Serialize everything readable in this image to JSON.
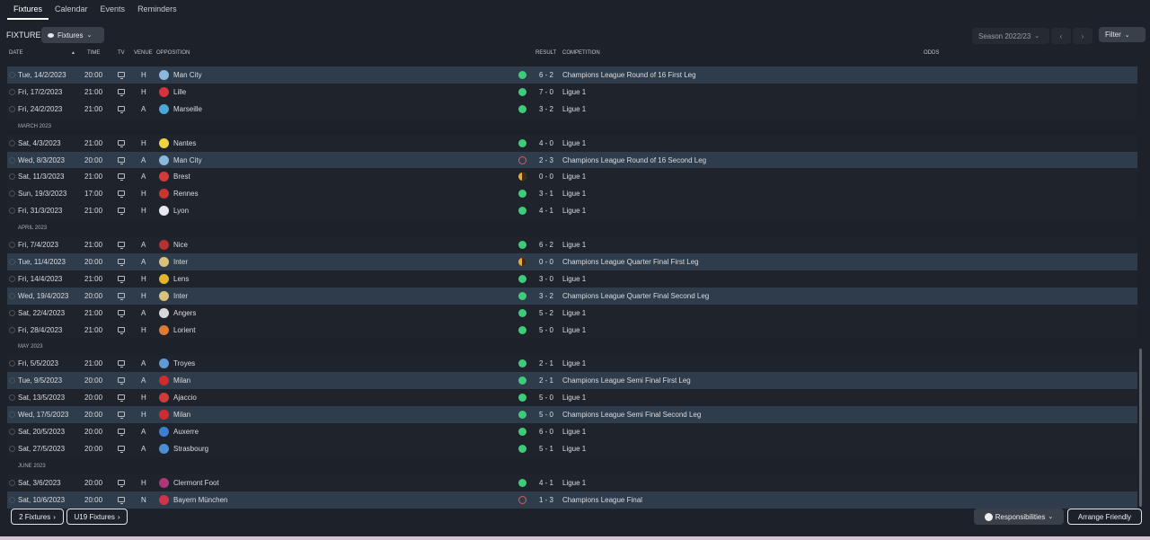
{
  "tabs": [
    {
      "label": "Fixtures",
      "active": true
    },
    {
      "label": "Calendar"
    },
    {
      "label": "Events"
    },
    {
      "label": "Reminders"
    }
  ],
  "toolbar": {
    "title": "FIXTURES",
    "view_label": "Fixtures",
    "season_label": "Season 2022/23",
    "filter_label": "Filter"
  },
  "columns": {
    "date": "DATE",
    "sort_arrow": "▲",
    "time": "TIME",
    "tv": "TV",
    "venue": "VENUE",
    "opposition": "OPPOSITION",
    "result": "RESULT",
    "competition": "COMPETITION",
    "odds": "ODDS"
  },
  "rows": [
    {
      "kind": "fixture",
      "date": "Tue, 14/2/2023",
      "time": "20:00",
      "venue": "H",
      "opp": "Man City",
      "score": "6 - 2",
      "outcome": "win",
      "comp": "Champions League Round of 16  First Leg",
      "hl": true,
      "crest": "#8ab9e0"
    },
    {
      "kind": "fixture",
      "date": "Fri, 17/2/2023",
      "time": "21:00",
      "venue": "H",
      "opp": "Lille",
      "score": "7 - 0",
      "outcome": "win",
      "comp": "Ligue 1",
      "hl": false,
      "crest": "#d6333f"
    },
    {
      "kind": "fixture",
      "date": "Fri, 24/2/2023",
      "time": "21:00",
      "venue": "A",
      "opp": "Marseille",
      "score": "3 - 2",
      "outcome": "win",
      "comp": "Ligue 1",
      "hl": false,
      "crest": "#4aa8d8"
    },
    {
      "kind": "month",
      "label": "MARCH 2023"
    },
    {
      "kind": "fixture",
      "date": "Sat, 4/3/2023",
      "time": "21:00",
      "venue": "H",
      "opp": "Nantes",
      "score": "4 - 0",
      "outcome": "win",
      "comp": "Ligue 1",
      "hl": false,
      "crest": "#f2d33c"
    },
    {
      "kind": "fixture",
      "date": "Wed, 8/3/2023",
      "time": "20:00",
      "venue": "A",
      "opp": "Man City",
      "score": "2 - 3",
      "outcome": "loss",
      "comp": "Champions League Round of 16  Second Leg",
      "hl": true,
      "crest": "#8ab9e0"
    },
    {
      "kind": "fixture",
      "date": "Sat, 11/3/2023",
      "time": "21:00",
      "venue": "A",
      "opp": "Brest",
      "score": "0 - 0",
      "outcome": "draw",
      "comp": "Ligue 1",
      "hl": false,
      "crest": "#d43a3a"
    },
    {
      "kind": "fixture",
      "date": "Sun, 19/3/2023",
      "time": "17:00",
      "venue": "H",
      "opp": "Rennes",
      "score": "3 - 1",
      "outcome": "win",
      "comp": "Ligue 1",
      "hl": false,
      "crest": "#c8342e"
    },
    {
      "kind": "fixture",
      "date": "Fri, 31/3/2023",
      "time": "21:00",
      "venue": "H",
      "opp": "Lyon",
      "score": "4 - 1",
      "outcome": "win",
      "comp": "Ligue 1",
      "hl": false,
      "crest": "#e8e8f0"
    },
    {
      "kind": "month",
      "label": "APRIL 2023"
    },
    {
      "kind": "fixture",
      "date": "Fri, 7/4/2023",
      "time": "21:00",
      "venue": "A",
      "opp": "Nice",
      "score": "6 - 2",
      "outcome": "win",
      "comp": "Ligue 1",
      "hl": false,
      "crest": "#b8312f"
    },
    {
      "kind": "fixture",
      "date": "Tue, 11/4/2023",
      "time": "20:00",
      "venue": "A",
      "opp": "Inter",
      "score": "0 - 0",
      "outcome": "draw",
      "comp": "Champions League Quarter Final First Leg",
      "hl": true,
      "crest": "#d9c27a"
    },
    {
      "kind": "fixture",
      "date": "Fri, 14/4/2023",
      "time": "21:00",
      "venue": "H",
      "opp": "Lens",
      "score": "3 - 0",
      "outcome": "win",
      "comp": "Ligue 1",
      "hl": false,
      "crest": "#e0b52c"
    },
    {
      "kind": "fixture",
      "date": "Wed, 19/4/2023",
      "time": "20:00",
      "venue": "H",
      "opp": "Inter",
      "score": "3 - 2",
      "outcome": "win",
      "comp": "Champions League Quarter Final Second Leg",
      "hl": true,
      "crest": "#d9c27a"
    },
    {
      "kind": "fixture",
      "date": "Sat, 22/4/2023",
      "time": "21:00",
      "venue": "A",
      "opp": "Angers",
      "score": "5 - 2",
      "outcome": "win",
      "comp": "Ligue 1",
      "hl": false,
      "crest": "#d8d8d8"
    },
    {
      "kind": "fixture",
      "date": "Fri, 28/4/2023",
      "time": "21:00",
      "venue": "H",
      "opp": "Lorient",
      "score": "5 - 0",
      "outcome": "win",
      "comp": "Ligue 1",
      "hl": false,
      "crest": "#e07a30"
    },
    {
      "kind": "month",
      "label": "MAY 2023"
    },
    {
      "kind": "fixture",
      "date": "Fri, 5/5/2023",
      "time": "21:00",
      "venue": "A",
      "opp": "Troyes",
      "score": "2 - 1",
      "outcome": "win",
      "comp": "Ligue 1",
      "hl": false,
      "crest": "#5f9ad6"
    },
    {
      "kind": "fixture",
      "date": "Tue, 9/5/2023",
      "time": "20:00",
      "venue": "A",
      "opp": "Milan",
      "score": "2 - 1",
      "outcome": "win",
      "comp": "Champions League Semi Final First Leg",
      "hl": true,
      "crest": "#cf2d2d"
    },
    {
      "kind": "fixture",
      "date": "Sat, 13/5/2023",
      "time": "20:00",
      "venue": "H",
      "opp": "Ajaccio",
      "score": "5 - 0",
      "outcome": "win",
      "comp": "Ligue 1",
      "hl": false,
      "crest": "#d23a3a"
    },
    {
      "kind": "fixture",
      "date": "Wed, 17/5/2023",
      "time": "20:00",
      "venue": "H",
      "opp": "Milan",
      "score": "5 - 0",
      "outcome": "win",
      "comp": "Champions League Semi Final Second Leg",
      "hl": true,
      "crest": "#cf2d2d"
    },
    {
      "kind": "fixture",
      "date": "Sat, 20/5/2023",
      "time": "20:00",
      "venue": "A",
      "opp": "Auxerre",
      "score": "6 - 0",
      "outcome": "win",
      "comp": "Ligue 1",
      "hl": false,
      "crest": "#3b7fd1"
    },
    {
      "kind": "fixture",
      "date": "Sat, 27/5/2023",
      "time": "20:00",
      "venue": "A",
      "opp": "Strasbourg",
      "score": "5 - 1",
      "outcome": "win",
      "comp": "Ligue 1",
      "hl": false,
      "crest": "#4a8fd6"
    },
    {
      "kind": "month",
      "label": "JUNE 2023"
    },
    {
      "kind": "fixture",
      "date": "Sat, 3/6/2023",
      "time": "20:00",
      "venue": "H",
      "opp": "Clermont Foot",
      "score": "4 - 1",
      "outcome": "win",
      "comp": "Ligue 1",
      "hl": false,
      "crest": "#b0367a"
    },
    {
      "kind": "fixture",
      "date": "Sat, 10/6/2023",
      "time": "20:00",
      "venue": "N",
      "opp": "Bayern München",
      "score": "1 - 3",
      "outcome": "loss",
      "comp": "Champions League Final",
      "hl": true,
      "crest": "#d0334a"
    }
  ],
  "footer": {
    "btn1": "2 Fixtures",
    "btn2": "U19 Fixtures",
    "responsibilities": "Responsibilities",
    "arrange": "Arrange Friendly"
  }
}
